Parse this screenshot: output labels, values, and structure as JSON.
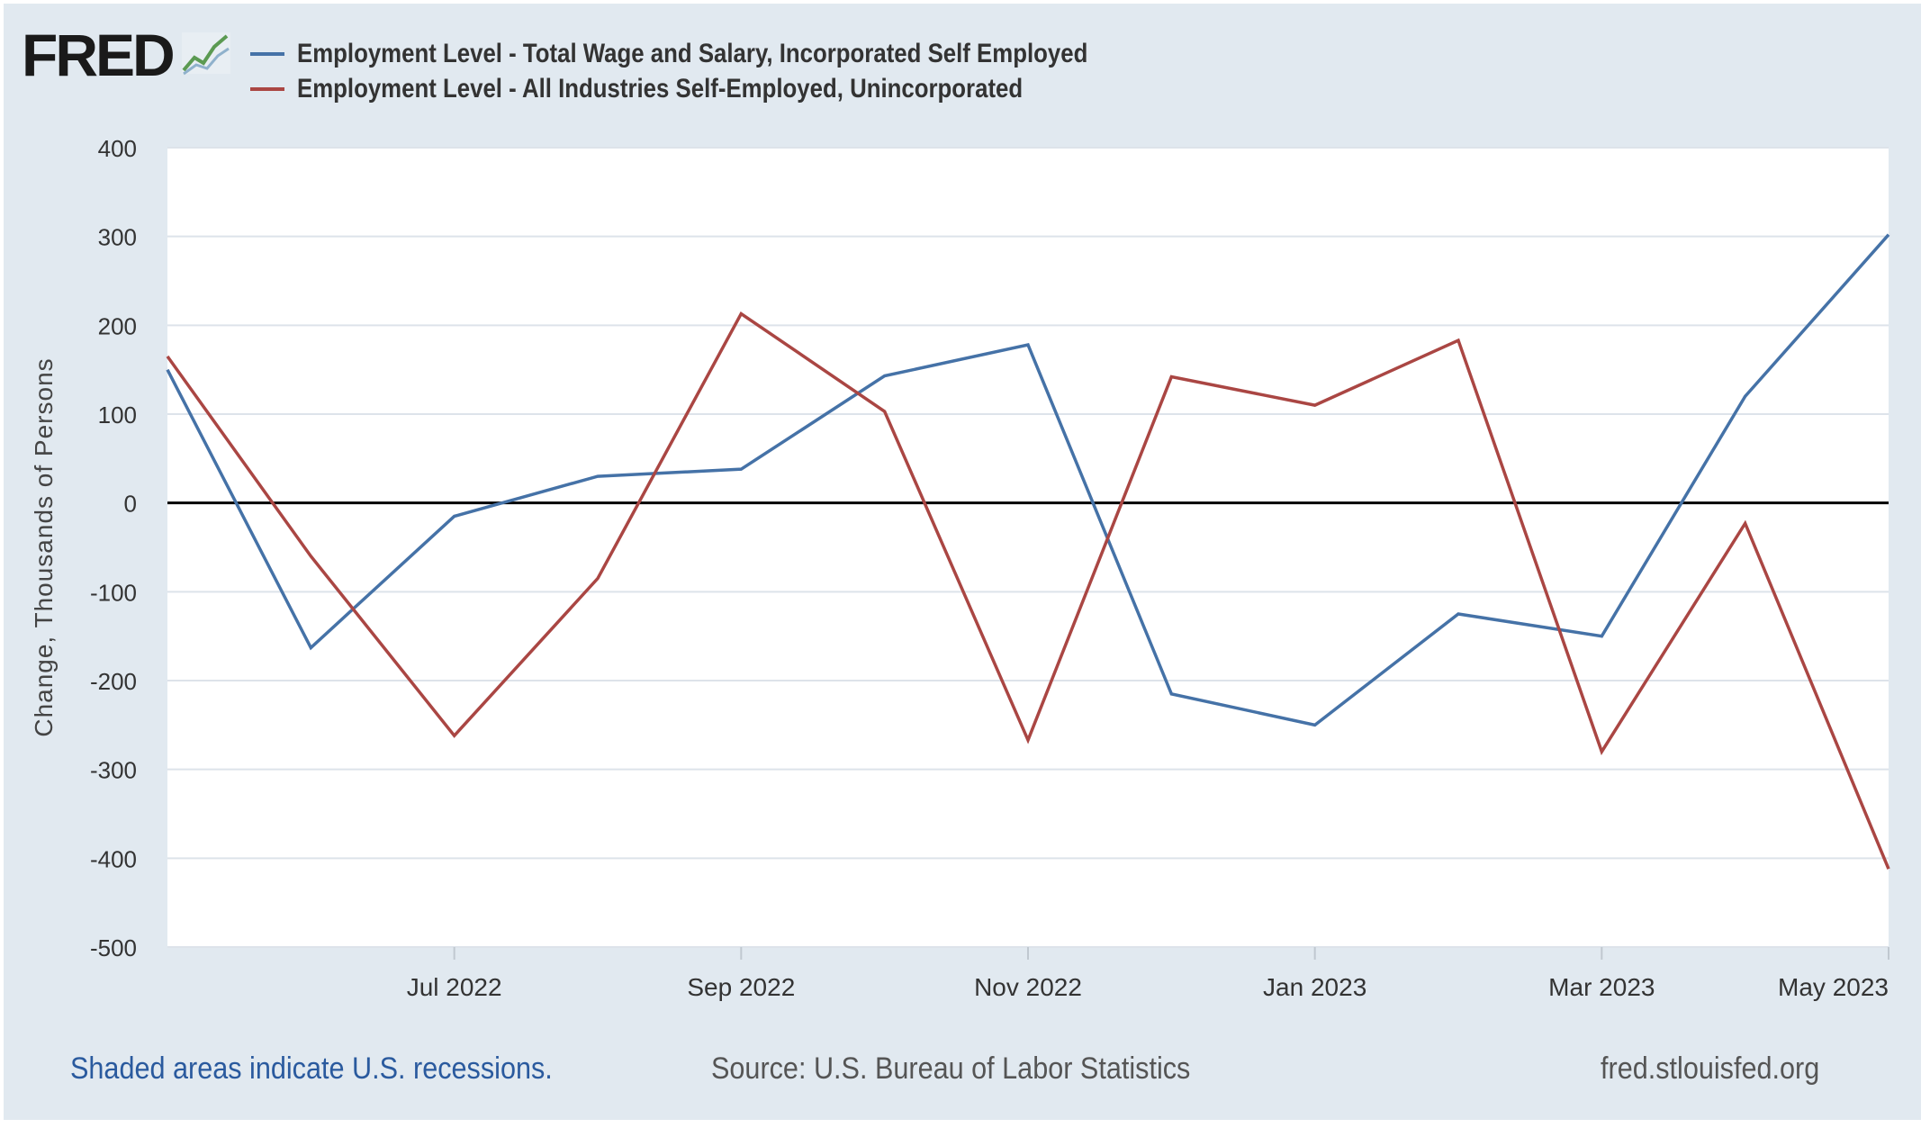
{
  "header": {
    "logo_text": "FRED",
    "logo_icon": "line-graph-icon"
  },
  "chart_data": {
    "type": "line",
    "x": [
      "2022-05",
      "2022-06",
      "2022-07",
      "2022-08",
      "2022-09",
      "2022-10",
      "2022-11",
      "2022-12",
      "2023-01",
      "2023-02",
      "2023-03",
      "2023-04",
      "2023-05"
    ],
    "x_tick_labels": [
      "Jul 2022",
      "Sep 2022",
      "Nov 2022",
      "Jan 2023",
      "Mar 2023",
      "May 2023"
    ],
    "x_tick_values": [
      "2022-07",
      "2022-09",
      "2022-11",
      "2023-01",
      "2023-03",
      "2023-05"
    ],
    "series": [
      {
        "name": "Employment Level - Total Wage and Salary, Incorporated Self Employed",
        "color": "#4572a7",
        "values": [
          150,
          -163,
          -15,
          30,
          38,
          143,
          178,
          -215,
          -250,
          -125,
          -150,
          120,
          302
        ]
      },
      {
        "name": "Employment Level - All Industries Self-Employed, Unincorporated",
        "color": "#aa4643",
        "values": [
          165,
          -60,
          -262,
          -85,
          213,
          103,
          -267,
          142,
          110,
          183,
          -280,
          -23,
          -412
        ]
      }
    ],
    "xlabel": "",
    "ylabel": "Change, Thousands of Persons",
    "ylim": [
      -500,
      400
    ],
    "y_ticks": [
      400,
      300,
      200,
      100,
      0,
      -100,
      -200,
      -300,
      -400,
      -500
    ],
    "zero_line": true,
    "grid": true,
    "legend_placement": "top-left"
  },
  "footer": {
    "recession_note": "Shaded areas indicate U.S. recessions.",
    "source": "Source: U.S. Bureau of Labor Statistics",
    "site": "fred.stlouisfed.org"
  }
}
